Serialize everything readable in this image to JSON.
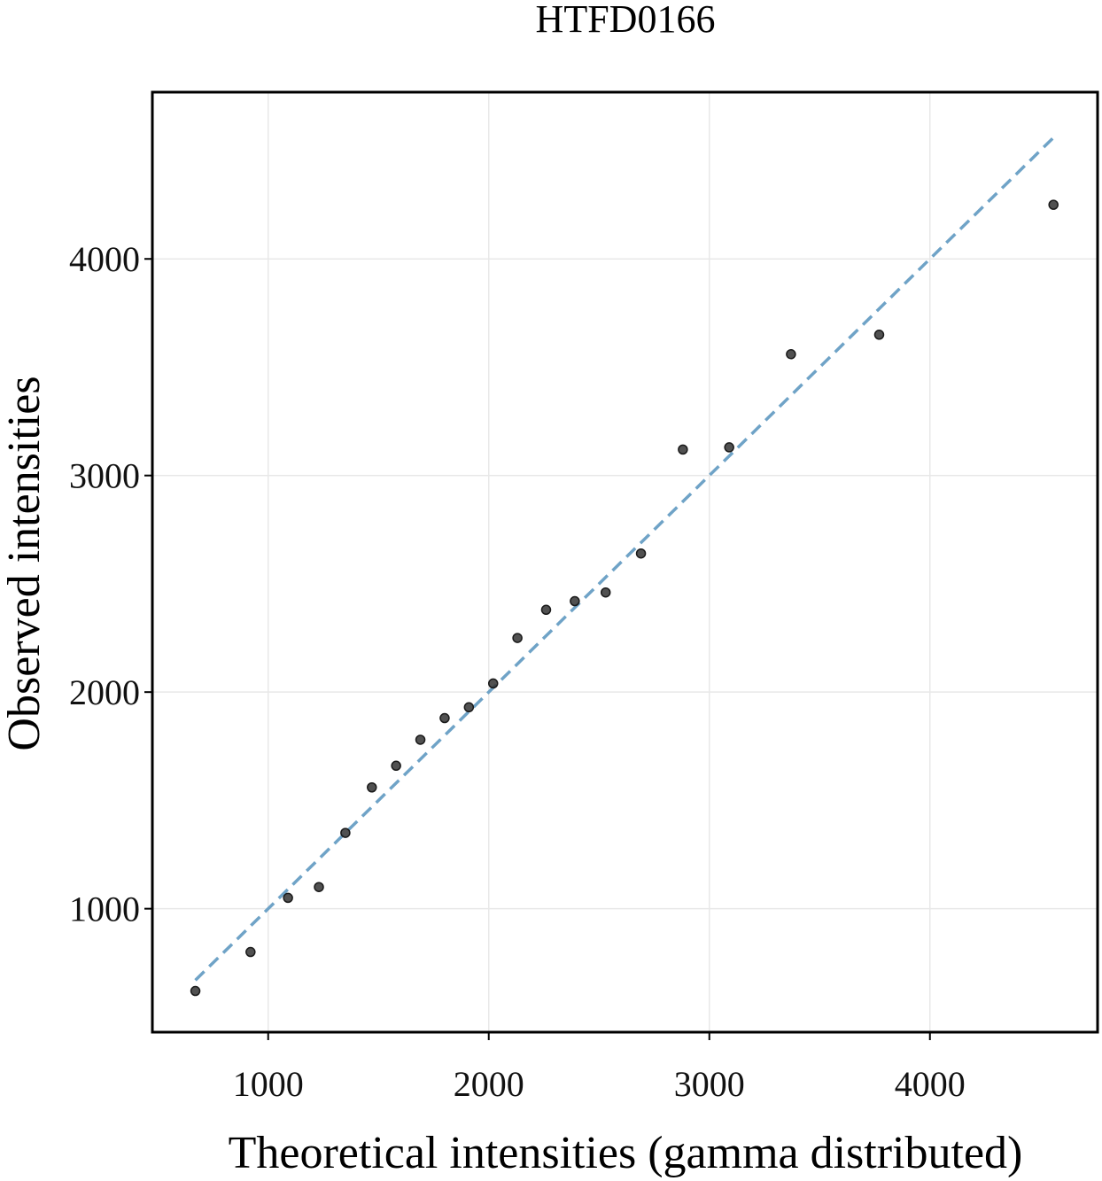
{
  "chart_data": {
    "type": "scatter",
    "title": "HTFD0166",
    "xlabel": "Theoretical intensities (gamma distributed)",
    "ylabel": "Observed intensities",
    "xlim": [
      475,
      4760
    ],
    "ylim": [
      430,
      4770
    ],
    "xticks": [
      1000,
      2000,
      3000,
      4000
    ],
    "yticks": [
      1000,
      2000,
      3000,
      4000
    ],
    "grid": true,
    "legend": "none",
    "series": [
      {
        "kind": "points",
        "x": [
          670,
          920,
          1090,
          1230,
          1350,
          1470,
          1580,
          1690,
          1800,
          1910,
          2020,
          2130,
          2260,
          2390,
          2530,
          2690,
          2880,
          3090,
          3370,
          3770,
          4560
        ],
        "y": [
          620,
          800,
          1050,
          1100,
          1350,
          1560,
          1660,
          1780,
          1880,
          1930,
          2040,
          2250,
          2380,
          2420,
          2460,
          2640,
          3120,
          3130,
          3560,
          3650,
          4250
        ]
      },
      {
        "kind": "reference-line",
        "x": [
          670,
          4560
        ],
        "y": [
          670,
          4560
        ]
      }
    ],
    "colors": {
      "points": "#333333",
      "reference_line": "#6fa3c7",
      "grid": "#e8e8e8",
      "frame": "#000000"
    }
  }
}
